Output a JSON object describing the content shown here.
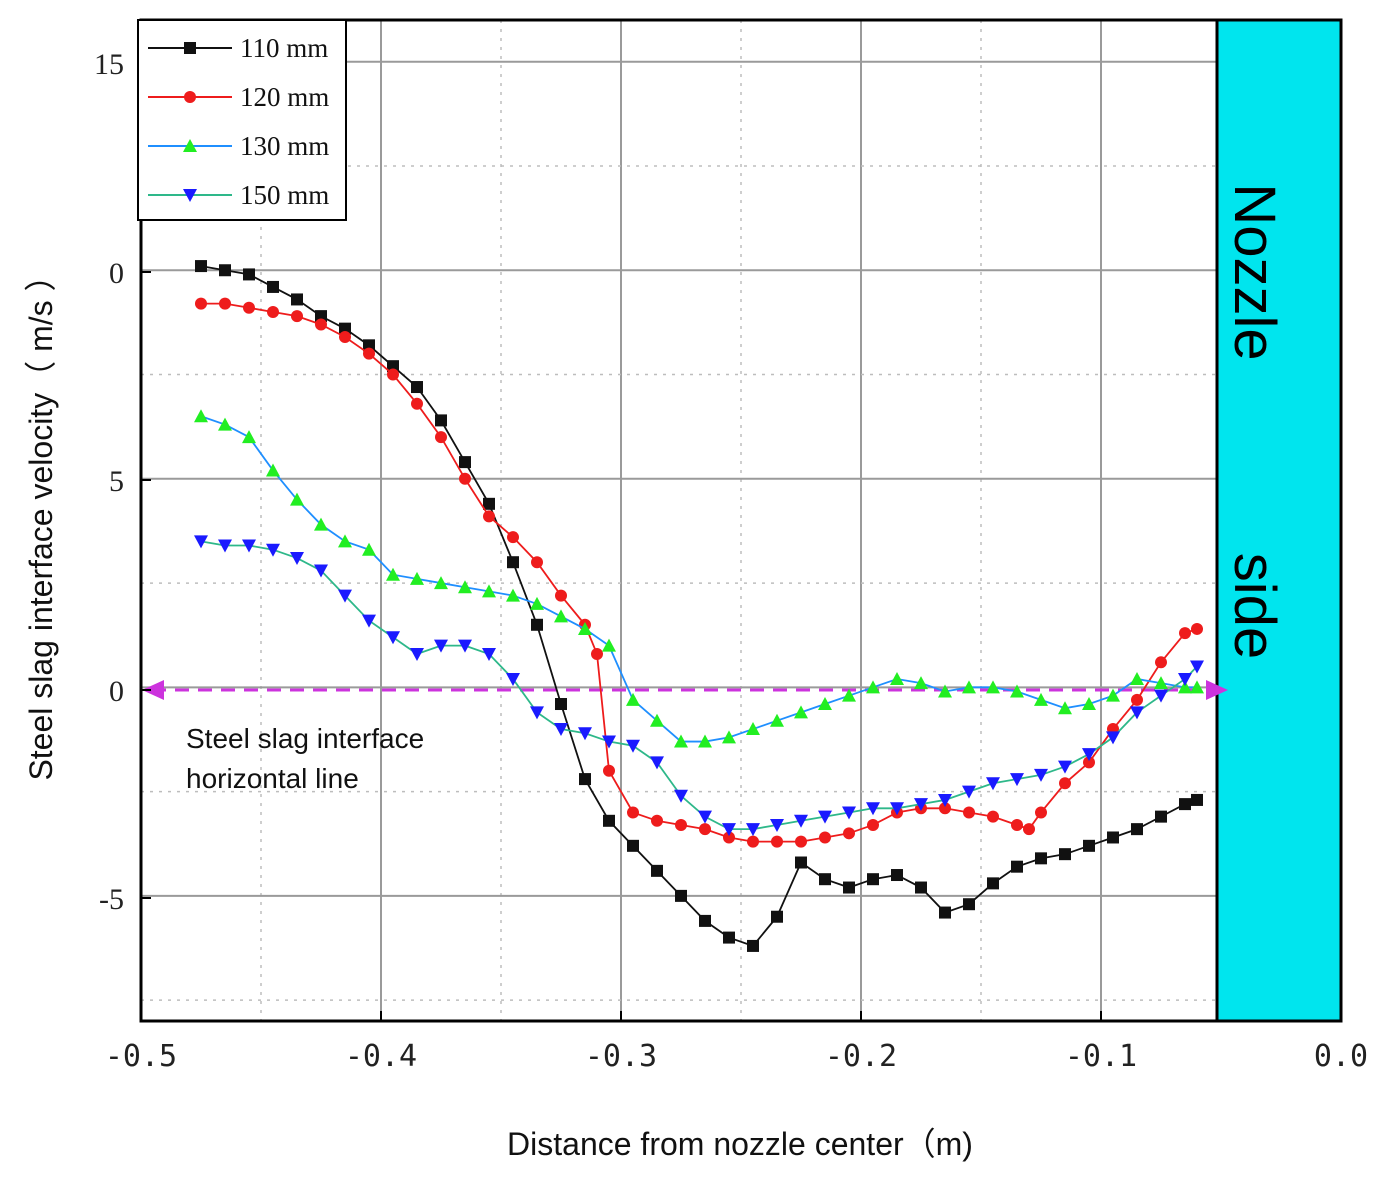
{
  "chart_data": {
    "type": "line",
    "title": "",
    "xlabel": "Distance from nozzle center（m)",
    "ylabel": "Steel slag interface velocity（ m/s ）",
    "xlim": [
      -0.5,
      0.0
    ],
    "ylim": [
      -8,
      16
    ],
    "x_ticks": [
      -0.5,
      -0.4,
      -0.3,
      -0.2,
      -0.1,
      0.0
    ],
    "x_tick_labels": [
      "-0.5",
      "-0.4",
      "-0.3",
      "-0.2",
      "-0.1",
      "0.0"
    ],
    "y_ticks": [
      -5,
      0,
      5,
      15
    ],
    "y_tick_labels": [
      "-5",
      "0",
      "5",
      "15"
    ],
    "y_axis_visible_labels": [
      "15",
      "0",
      "5",
      "0",
      "-5"
    ],
    "grid": true,
    "legend_position": "top-left",
    "series": [
      {
        "name": "110 mm",
        "color": "#111111",
        "marker": "square",
        "x": [
          -0.475,
          -0.465,
          -0.455,
          -0.445,
          -0.435,
          -0.425,
          -0.415,
          -0.405,
          -0.395,
          -0.385,
          -0.375,
          -0.365,
          -0.355,
          -0.345,
          -0.335,
          -0.325,
          -0.315,
          -0.305,
          -0.295,
          -0.285,
          -0.275,
          -0.265,
          -0.255,
          -0.245,
          -0.235,
          -0.225,
          -0.215,
          -0.205,
          -0.195,
          -0.185,
          -0.175,
          -0.165,
          -0.155,
          -0.145,
          -0.135,
          -0.125,
          -0.115,
          -0.105,
          -0.095,
          -0.085,
          -0.075,
          -0.065,
          -0.06
        ],
        "y": [
          10.1,
          10.0,
          9.9,
          9.6,
          9.3,
          8.9,
          8.6,
          8.2,
          7.7,
          7.2,
          6.4,
          5.4,
          4.4,
          3.0,
          1.5,
          -0.4,
          -2.2,
          -3.2,
          -3.8,
          -4.4,
          -5.0,
          -5.6,
          -6.0,
          -6.2,
          -5.5,
          -4.2,
          -4.6,
          -4.8,
          -4.6,
          -4.5,
          -4.8,
          -5.4,
          -5.2,
          -4.7,
          -4.3,
          -4.1,
          -4.0,
          -3.8,
          -3.6,
          -3.4,
          -3.1,
          -2.8,
          -2.7
        ]
      },
      {
        "name": "120 mm",
        "color": "#ee1c1c",
        "marker": "circle",
        "x": [
          -0.475,
          -0.465,
          -0.455,
          -0.445,
          -0.435,
          -0.425,
          -0.415,
          -0.405,
          -0.395,
          -0.385,
          -0.375,
          -0.365,
          -0.355,
          -0.345,
          -0.335,
          -0.325,
          -0.315,
          -0.31,
          -0.305,
          -0.295,
          -0.285,
          -0.275,
          -0.265,
          -0.255,
          -0.245,
          -0.235,
          -0.225,
          -0.215,
          -0.205,
          -0.195,
          -0.185,
          -0.175,
          -0.165,
          -0.155,
          -0.145,
          -0.135,
          -0.13,
          -0.125,
          -0.115,
          -0.105,
          -0.095,
          -0.085,
          -0.075,
          -0.065,
          -0.06
        ],
        "y": [
          9.2,
          9.2,
          9.1,
          9.0,
          8.9,
          8.7,
          8.4,
          8.0,
          7.5,
          6.8,
          6.0,
          5.0,
          4.1,
          3.6,
          3.0,
          2.2,
          1.5,
          0.8,
          -2.0,
          -3.0,
          -3.2,
          -3.3,
          -3.4,
          -3.6,
          -3.7,
          -3.7,
          -3.7,
          -3.6,
          -3.5,
          -3.3,
          -3.0,
          -2.9,
          -2.9,
          -3.0,
          -3.1,
          -3.3,
          -3.4,
          -3.0,
          -2.3,
          -1.8,
          -1.0,
          -0.3,
          0.6,
          1.3,
          1.4
        ]
      },
      {
        "name": "130 mm",
        "color": "#1f8fff",
        "marker": "triangle-up",
        "marker_color": "#22ee22",
        "x": [
          -0.475,
          -0.465,
          -0.455,
          -0.445,
          -0.435,
          -0.425,
          -0.415,
          -0.405,
          -0.395,
          -0.385,
          -0.375,
          -0.365,
          -0.355,
          -0.345,
          -0.335,
          -0.325,
          -0.315,
          -0.305,
          -0.295,
          -0.285,
          -0.275,
          -0.265,
          -0.255,
          -0.245,
          -0.235,
          -0.225,
          -0.215,
          -0.205,
          -0.195,
          -0.185,
          -0.175,
          -0.165,
          -0.155,
          -0.145,
          -0.135,
          -0.125,
          -0.115,
          -0.105,
          -0.095,
          -0.085,
          -0.075,
          -0.065,
          -0.06
        ],
        "y": [
          6.5,
          6.3,
          6.0,
          5.2,
          4.5,
          3.9,
          3.5,
          3.3,
          2.7,
          2.6,
          2.5,
          2.4,
          2.3,
          2.2,
          2.0,
          1.7,
          1.4,
          1.0,
          -0.3,
          -0.8,
          -1.3,
          -1.3,
          -1.2,
          -1.0,
          -0.8,
          -0.6,
          -0.4,
          -0.2,
          0.0,
          0.2,
          0.1,
          -0.1,
          0.0,
          0.0,
          -0.1,
          -0.3,
          -0.5,
          -0.4,
          -0.2,
          0.2,
          0.1,
          0.0,
          0.0
        ]
      },
      {
        "name": "150 mm",
        "color": "#2eb88a",
        "marker": "triangle-down",
        "marker_color": "#1a1aff",
        "x": [
          -0.475,
          -0.465,
          -0.455,
          -0.445,
          -0.435,
          -0.425,
          -0.415,
          -0.405,
          -0.395,
          -0.385,
          -0.375,
          -0.365,
          -0.355,
          -0.345,
          -0.335,
          -0.325,
          -0.315,
          -0.305,
          -0.295,
          -0.285,
          -0.275,
          -0.265,
          -0.255,
          -0.245,
          -0.235,
          -0.225,
          -0.215,
          -0.205,
          -0.195,
          -0.185,
          -0.175,
          -0.165,
          -0.155,
          -0.145,
          -0.135,
          -0.125,
          -0.115,
          -0.105,
          -0.095,
          -0.085,
          -0.075,
          -0.065,
          -0.06
        ],
        "y": [
          3.5,
          3.4,
          3.4,
          3.3,
          3.1,
          2.8,
          2.2,
          1.6,
          1.2,
          0.8,
          1.0,
          1.0,
          0.8,
          0.2,
          -0.6,
          -1.0,
          -1.1,
          -1.3,
          -1.4,
          -1.8,
          -2.6,
          -3.1,
          -3.4,
          -3.4,
          -3.3,
          -3.2,
          -3.1,
          -3.0,
          -2.9,
          -2.9,
          -2.8,
          -2.7,
          -2.5,
          -2.3,
          -2.2,
          -2.1,
          -1.9,
          -1.6,
          -1.2,
          -0.6,
          -0.2,
          0.2,
          0.5
        ]
      }
    ],
    "reference_line": {
      "label_line1": "Steel slag interface",
      "label_line2": "horizontal line",
      "y": -1.0,
      "color": "#cc33dd"
    },
    "nozzle_region": {
      "x_start": -0.05,
      "x_end": 0.0,
      "color": "#00e5ee",
      "text_line1": "Nozzle",
      "text_line2": "side"
    }
  }
}
